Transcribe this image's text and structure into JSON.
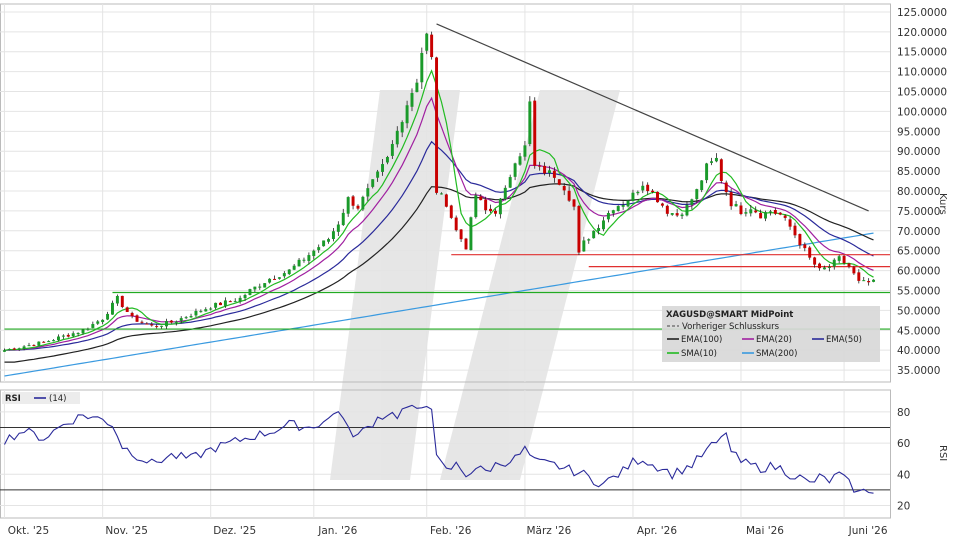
{
  "colors": {
    "up": "#1a9a2a",
    "down": "#c80000",
    "ema100": "#222222",
    "ema20": "#a020a0",
    "ema50": "#2a2a9a",
    "sma10": "#22bb22",
    "sma200": "#3a9ae0",
    "rsi": "#2a2a9a",
    "hline_green": "#22aa22",
    "hline_red": "#e03030",
    "trendline": "#444444",
    "grid": "#e4e4e4",
    "legend_bg": "#d8d8d8"
  },
  "chart_data": {
    "type": "candlestick",
    "symbol": "XAGUSD@SMART MidPoint",
    "ylabel": "Kurs",
    "ylim": [
      32,
      127
    ],
    "yticks": [
      "35.0000",
      "40.0000",
      "45.0000",
      "50.0000",
      "55.0000",
      "60.0000",
      "65.0000",
      "70.0000",
      "75.0000",
      "80.0000",
      "85.0000",
      "90.0000",
      "95.0000",
      "100.0000",
      "105.0000",
      "110.0000",
      "115.0000",
      "120.0000",
      "125.0000"
    ],
    "x_months": [
      "Okt. '25",
      "Nov. '25",
      "Dez. '25",
      "Jan. '26",
      "Feb. '26",
      "März '26",
      "Apr. '26",
      "Mai '26",
      "Juni '26"
    ],
    "grid": true,
    "legend_position": "bottom-right",
    "legend": {
      "title": "XAGUSD@SMART MidPoint",
      "prev_close": "Vorheriger Schlusskurs",
      "items": [
        {
          "name": "EMA(100)",
          "key": "ema100"
        },
        {
          "name": "EMA(20)",
          "key": "ema20"
        },
        {
          "name": "EMA(50)",
          "key": "ema50"
        },
        {
          "name": "SMA(10)",
          "key": "sma10"
        },
        {
          "name": "SMA(200)",
          "key": "sma200"
        }
      ]
    },
    "price_path": [
      [
        0,
        40
      ],
      [
        8,
        42
      ],
      [
        16,
        45
      ],
      [
        20,
        48
      ],
      [
        23,
        53
      ],
      [
        26,
        48
      ],
      [
        30,
        46
      ],
      [
        34,
        47
      ],
      [
        38,
        49
      ],
      [
        42,
        51
      ],
      [
        45,
        52
      ],
      [
        48,
        53
      ],
      [
        50,
        55
      ],
      [
        54,
        58
      ],
      [
        58,
        60
      ],
      [
        62,
        64
      ],
      [
        66,
        68
      ],
      [
        68,
        72
      ],
      [
        70,
        78
      ],
      [
        72,
        76
      ],
      [
        74,
        80
      ],
      [
        76,
        84
      ],
      [
        78,
        88
      ],
      [
        80,
        95
      ],
      [
        82,
        102
      ],
      [
        84,
        108
      ],
      [
        85,
        115
      ],
      [
        86,
        119
      ],
      [
        87,
        113
      ],
      [
        88,
        80
      ],
      [
        90,
        77
      ],
      [
        92,
        70
      ],
      [
        94,
        66
      ],
      [
        96,
        79
      ],
      [
        98,
        75
      ],
      [
        100,
        75
      ],
      [
        102,
        80
      ],
      [
        104,
        88
      ],
      [
        106,
        91
      ],
      [
        107,
        102
      ],
      [
        108,
        86
      ],
      [
        110,
        85
      ],
      [
        112,
        84
      ],
      [
        114,
        81
      ],
      [
        116,
        76
      ],
      [
        117,
        64
      ],
      [
        118,
        67
      ],
      [
        120,
        70
      ],
      [
        122,
        73
      ],
      [
        124,
        76
      ],
      [
        126,
        77
      ],
      [
        128,
        79
      ],
      [
        130,
        82
      ],
      [
        131,
        81
      ],
      [
        133,
        78
      ],
      [
        135,
        75
      ],
      [
        137,
        74
      ],
      [
        139,
        76
      ],
      [
        141,
        80
      ],
      [
        143,
        86
      ],
      [
        145,
        88
      ],
      [
        146,
        83
      ],
      [
        148,
        77
      ],
      [
        150,
        75
      ],
      [
        152,
        76
      ],
      [
        154,
        74
      ],
      [
        156,
        75
      ],
      [
        158,
        74
      ],
      [
        160,
        71
      ],
      [
        162,
        67
      ],
      [
        164,
        63
      ],
      [
        166,
        60
      ],
      [
        168,
        61
      ],
      [
        170,
        63
      ],
      [
        172,
        61
      ],
      [
        174,
        57
      ]
    ],
    "horizontal_lines": [
      {
        "value": 54.5,
        "x_from": 22,
        "color": "hline_green"
      },
      {
        "value": 45.3,
        "x_from": 0,
        "color": "hline_green"
      },
      {
        "value": 64.0,
        "x_from": 91,
        "color": "hline_red"
      },
      {
        "value": 61.0,
        "x_from": 119,
        "color": "hline_red"
      }
    ],
    "trendline": [
      {
        "x": 88,
        "y": 122
      },
      {
        "x": 176,
        "y": 75
      }
    ],
    "rsi": {
      "label": "RSI",
      "period_label": "(14)",
      "ylim": [
        12,
        94
      ],
      "yticks": [
        "20",
        "40",
        "60",
        "80"
      ],
      "levels": [
        70,
        30
      ],
      "path": [
        [
          0,
          62
        ],
        [
          4,
          68
        ],
        [
          8,
          63
        ],
        [
          12,
          72
        ],
        [
          16,
          78
        ],
        [
          20,
          75
        ],
        [
          22,
          72
        ],
        [
          24,
          58
        ],
        [
          27,
          52
        ],
        [
          30,
          47
        ],
        [
          34,
          52
        ],
        [
          38,
          50
        ],
        [
          42,
          56
        ],
        [
          46,
          60
        ],
        [
          50,
          64
        ],
        [
          54,
          67
        ],
        [
          58,
          72
        ],
        [
          62,
          70
        ],
        [
          66,
          75
        ],
        [
          68,
          82
        ],
        [
          70,
          68
        ],
        [
          72,
          65
        ],
        [
          74,
          70
        ],
        [
          76,
          76
        ],
        [
          78,
          79
        ],
        [
          80,
          78
        ],
        [
          82,
          83
        ],
        [
          84,
          80
        ],
        [
          86,
          86
        ],
        [
          87,
          84
        ],
        [
          88,
          50
        ],
        [
          90,
          42
        ],
        [
          92,
          46
        ],
        [
          94,
          40
        ],
        [
          96,
          44
        ],
        [
          98,
          42
        ],
        [
          100,
          46
        ],
        [
          102,
          48
        ],
        [
          104,
          50
        ],
        [
          106,
          56
        ],
        [
          108,
          48
        ],
        [
          110,
          47
        ],
        [
          112,
          46
        ],
        [
          114,
          44
        ],
        [
          116,
          42
        ],
        [
          118,
          40
        ],
        [
          120,
          36
        ],
        [
          122,
          34
        ],
        [
          124,
          38
        ],
        [
          126,
          42
        ],
        [
          128,
          48
        ],
        [
          130,
          50
        ],
        [
          132,
          46
        ],
        [
          134,
          44
        ],
        [
          136,
          40
        ],
        [
          138,
          43
        ],
        [
          140,
          46
        ],
        [
          142,
          52
        ],
        [
          144,
          58
        ],
        [
          146,
          62
        ],
        [
          147,
          68
        ],
        [
          148,
          54
        ],
        [
          150,
          48
        ],
        [
          152,
          46
        ],
        [
          154,
          44
        ],
        [
          156,
          45
        ],
        [
          158,
          44
        ],
        [
          160,
          40
        ],
        [
          162,
          38
        ],
        [
          164,
          34
        ],
        [
          166,
          38
        ],
        [
          168,
          36
        ],
        [
          170,
          40
        ],
        [
          172,
          34
        ],
        [
          174,
          28
        ],
        [
          176,
          30
        ]
      ]
    },
    "n_bars": 178
  }
}
